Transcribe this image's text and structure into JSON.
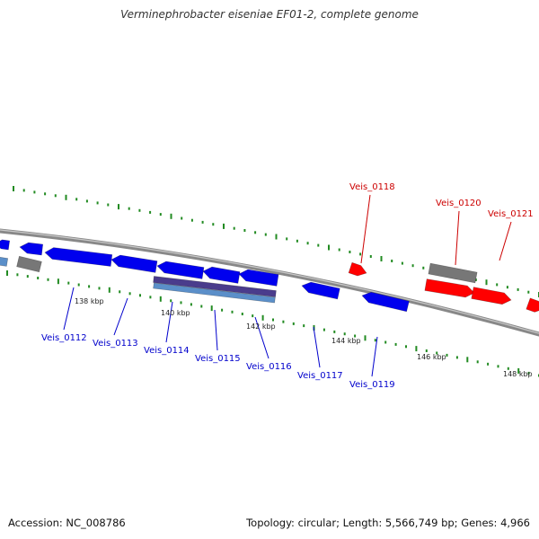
{
  "title": "Verminephrobacter eiseniae EF01-2, complete genome",
  "footer": {
    "accession": "Accession: NC_008786",
    "summary": "Topology: circular; Length: 5,566,749 bp; Genes: 4,966"
  },
  "colors": {
    "forward_gene": "#ff0000",
    "reverse_gene": "#0000ee",
    "pseudo_gene": "#777777",
    "tick": "#228b22",
    "backbone": "#888888",
    "label_reverse": "#0000cc",
    "label_forward": "#cc0000",
    "rna_dark": "#4a3c8c",
    "rna_light": "#5b8fc9"
  },
  "scale_labels": [
    "138 kbp",
    "140 kbp",
    "142 kbp",
    "144 kbp",
    "146 kbp",
    "148 kbp"
  ],
  "loci": {
    "forward": [
      "Veis_0118",
      "Veis_0120",
      "Veis_0121"
    ],
    "reverse": [
      "Veis_0112",
      "Veis_0113",
      "Veis_0114",
      "Veis_0115",
      "Veis_0116",
      "Veis_0117",
      "Veis_0119"
    ]
  }
}
